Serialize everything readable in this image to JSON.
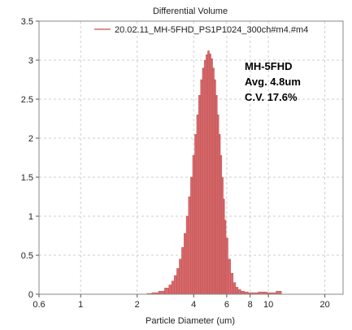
{
  "chart_data": {
    "type": "bar",
    "title": "Differential Volume",
    "xlabel": "Particle Diameter (um)",
    "ylabel": "",
    "x_scale": "log",
    "xlim": [
      0.6,
      25
    ],
    "ylim": [
      0,
      3.5
    ],
    "xticks": [
      0.6,
      1,
      2,
      4,
      6,
      8,
      10,
      20
    ],
    "xtick_labels": [
      "0.6",
      "1",
      "2",
      "4",
      "6",
      "8",
      "10",
      "20"
    ],
    "yticks": [
      0,
      0.5,
      1,
      1.5,
      2,
      2.5,
      3,
      3.5
    ],
    "ytick_labels": [
      "0",
      "0.5",
      "1",
      "1.5",
      "2",
      "2.5",
      "3",
      "3.5"
    ],
    "grid": true,
    "legend": {
      "position": "top-right",
      "entries": [
        "20.02.11_MH-5FHD_PS1P1024_300ch#m4.#m4"
      ]
    },
    "annotations": [
      "MH-5FHD",
      "Avg. 4.8um",
      "C.V. 17.6%"
    ],
    "series": [
      {
        "name": "20.02.11_MH-5FHD_PS1P1024_300ch#m4.#m4",
        "color": "#d9696b",
        "distribution": {
          "mean": 4.8,
          "cv_percent": 17.6,
          "peak": 3.12
        },
        "x": [
          2.3,
          2.5,
          2.7,
          2.9,
          3.0,
          3.1,
          3.2,
          3.3,
          3.4,
          3.5,
          3.6,
          3.7,
          3.8,
          3.9,
          4.0,
          4.1,
          4.2,
          4.3,
          4.4,
          4.5,
          4.6,
          4.7,
          4.8,
          4.9,
          5.0,
          5.1,
          5.2,
          5.3,
          5.4,
          5.5,
          5.6,
          5.7,
          5.8,
          5.9,
          6.0,
          6.2,
          6.4,
          6.6,
          6.8,
          7.0,
          7.3,
          7.6,
          8.0,
          8.5,
          9.2,
          10.5,
          11.5
        ],
        "values": [
          0.01,
          0.02,
          0.04,
          0.08,
          0.12,
          0.17,
          0.24,
          0.33,
          0.45,
          0.6,
          0.78,
          1.0,
          1.25,
          1.5,
          1.78,
          2.05,
          2.3,
          2.55,
          2.75,
          2.9,
          3.0,
          3.07,
          3.12,
          3.08,
          3.02,
          2.9,
          2.75,
          2.55,
          2.3,
          2.05,
          1.78,
          1.5,
          1.22,
          0.95,
          0.72,
          0.45,
          0.27,
          0.15,
          0.09,
          0.06,
          0.04,
          0.03,
          0.02,
          0.02,
          0.03,
          0.02,
          0.04
        ]
      }
    ]
  }
}
